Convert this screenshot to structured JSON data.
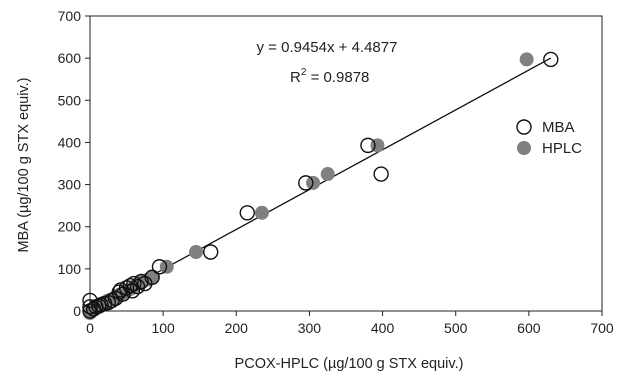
{
  "chart_data": {
    "type": "scatter",
    "xlabel": "PCOX-HPLC (µg/100 g STX equiv.)",
    "ylabel": "MBA (µg/100 g STX equiv.)",
    "xlim": [
      0,
      700
    ],
    "ylim": [
      0,
      700
    ],
    "xticks": [
      "0",
      "100",
      "200",
      "300",
      "400",
      "500",
      "600",
      "700"
    ],
    "yticks": [
      "0",
      "100",
      "200",
      "300",
      "400",
      "500",
      "600",
      "700"
    ],
    "grid": false,
    "legend_position": "right",
    "annotations": {
      "equation": "y = 0.9454x + 4.4877",
      "r2_prefix": "R",
      "r2_sup": "2",
      "r2_value": " = 0.9878"
    },
    "trendline": {
      "slope": 0.9454,
      "intercept": 4.4877,
      "x_range": [
        0,
        630
      ]
    },
    "series": [
      {
        "name": "MBA",
        "style": "open",
        "color": "#111111",
        "points": [
          [
            0,
            0
          ],
          [
            0,
            10
          ],
          [
            0,
            25
          ],
          [
            5,
            5
          ],
          [
            8,
            10
          ],
          [
            12,
            12
          ],
          [
            15,
            15
          ],
          [
            20,
            18
          ],
          [
            25,
            20
          ],
          [
            30,
            25
          ],
          [
            35,
            30
          ],
          [
            40,
            45
          ],
          [
            42,
            50
          ],
          [
            45,
            40
          ],
          [
            50,
            55
          ],
          [
            55,
            60
          ],
          [
            58,
            48
          ],
          [
            60,
            65
          ],
          [
            65,
            58
          ],
          [
            70,
            70
          ],
          [
            75,
            65
          ],
          [
            85,
            80
          ],
          [
            95,
            105
          ],
          [
            165,
            140
          ],
          [
            215,
            233
          ],
          [
            295,
            304
          ],
          [
            380,
            393
          ],
          [
            398,
            325
          ],
          [
            630,
            597
          ]
        ]
      },
      {
        "name": "HPLC",
        "style": "filled",
        "color": "#808080",
        "points": [
          [
            0,
            -5
          ],
          [
            2,
            0
          ],
          [
            5,
            3
          ],
          [
            10,
            8
          ],
          [
            15,
            12
          ],
          [
            20,
            20
          ],
          [
            25,
            25
          ],
          [
            30,
            28
          ],
          [
            35,
            32
          ],
          [
            40,
            38
          ],
          [
            45,
            42
          ],
          [
            50,
            48
          ],
          [
            55,
            52
          ],
          [
            60,
            58
          ],
          [
            70,
            68
          ],
          [
            80,
            75
          ],
          [
            85,
            82
          ],
          [
            105,
            105
          ],
          [
            145,
            140
          ],
          [
            235,
            233
          ],
          [
            305,
            304
          ],
          [
            325,
            325
          ],
          [
            393,
            393
          ],
          [
            597,
            597
          ]
        ]
      }
    ]
  }
}
